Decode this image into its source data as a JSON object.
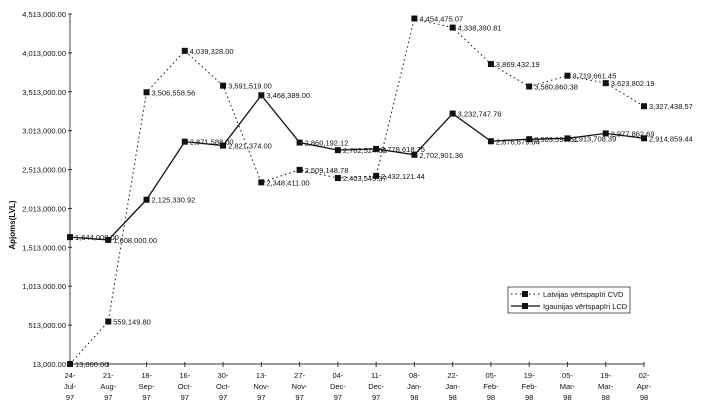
{
  "chart_data": {
    "type": "line",
    "title": "",
    "xlabel": "",
    "ylabel": "Apjoms(LVL)",
    "ylim": [
      13000,
      4513000
    ],
    "yticks": [
      "13,000.00",
      "513,000.00",
      "1,013,000.00",
      "1,513,000.00",
      "2,013,000.00",
      "2,513,000.00",
      "3,013,000.00",
      "3,513,000.00",
      "4,013,000.00",
      "4,513,000.00"
    ],
    "ytick_values": [
      13000,
      513000,
      1013000,
      1513000,
      2013000,
      2513000,
      3013000,
      3513000,
      4013000,
      4513000
    ],
    "categories": [
      [
        "24-",
        "Jul-",
        "97"
      ],
      [
        "21-",
        "Aug-",
        "97"
      ],
      [
        "18-",
        "Sep-",
        "97"
      ],
      [
        "16-",
        "Oct-",
        "97"
      ],
      [
        "30-",
        "Oct-",
        "97"
      ],
      [
        "13-",
        "Nov-",
        "97"
      ],
      [
        "27-",
        "Nov-",
        "97"
      ],
      [
        "04-",
        "Dec-",
        "97"
      ],
      [
        "11-",
        "Dec-",
        "97"
      ],
      [
        "08-",
        "Jan-",
        "98"
      ],
      [
        "22-",
        "Jan-",
        "98"
      ],
      [
        "05-",
        "Feb-",
        "98"
      ],
      [
        "19-",
        "Feb-",
        "98"
      ],
      [
        "05-",
        "Mar-",
        "98"
      ],
      [
        "19-",
        "Mar-",
        "98"
      ],
      [
        "02-",
        "Apr-",
        "98"
      ]
    ],
    "legend_position": "right-middle",
    "grid": false,
    "series": [
      {
        "name": "Latvijas vērtspapīri CVD",
        "style": "dotted",
        "values": [
          13000.0,
          559149.8,
          3506558.56,
          4039328.0,
          3591519.0,
          2348411.0,
          2509148.78,
          2403545.37,
          2432121.44,
          4454475.07,
          4338390.81,
          3869432.19,
          3580860.38,
          3719661.45,
          3623802.19,
          3327438.57
        ],
        "labels": [
          "13,000.00",
          "559,149.80",
          "3,506,558.56",
          "4,039,328.00",
          "3,591,519.00",
          "2,348,411.00",
          "2,509,148.78",
          "2,403,545.37",
          "2,432,121.44",
          "4,454,475.07",
          "4,338,390.81",
          "3,869,432.19",
          "3,580,860.38",
          "3,719,661.45",
          "3,623,802.19",
          "3,327,438.57"
        ]
      },
      {
        "name": "Igaunijas vērtspapīri LCD",
        "style": "solid",
        "values": [
          1644000.0,
          1608000.0,
          2125330.92,
          2871588.0,
          2821374.0,
          3468389.0,
          2860192.12,
          2762524.69,
          2778618.75,
          2702901.36,
          3232747.76,
          2876679.64,
          2903590.51,
          2913708.39,
          2977862.69,
          2914859.44
        ],
        "labels": [
          "1,644,000.00",
          "1,608,000.00",
          "2,125,330.92",
          "2,871,588.00",
          "2,821,374.00",
          "3,468,389.00",
          "2,860,192.12",
          "2,762,524.69",
          "2,778,618.75",
          "2,702,901.36",
          "3,232,747.76",
          "2,876,679.64",
          "2,903,590.51",
          "2,913,708.39",
          "2,977,862.69",
          "2,914,859.44"
        ]
      }
    ]
  }
}
